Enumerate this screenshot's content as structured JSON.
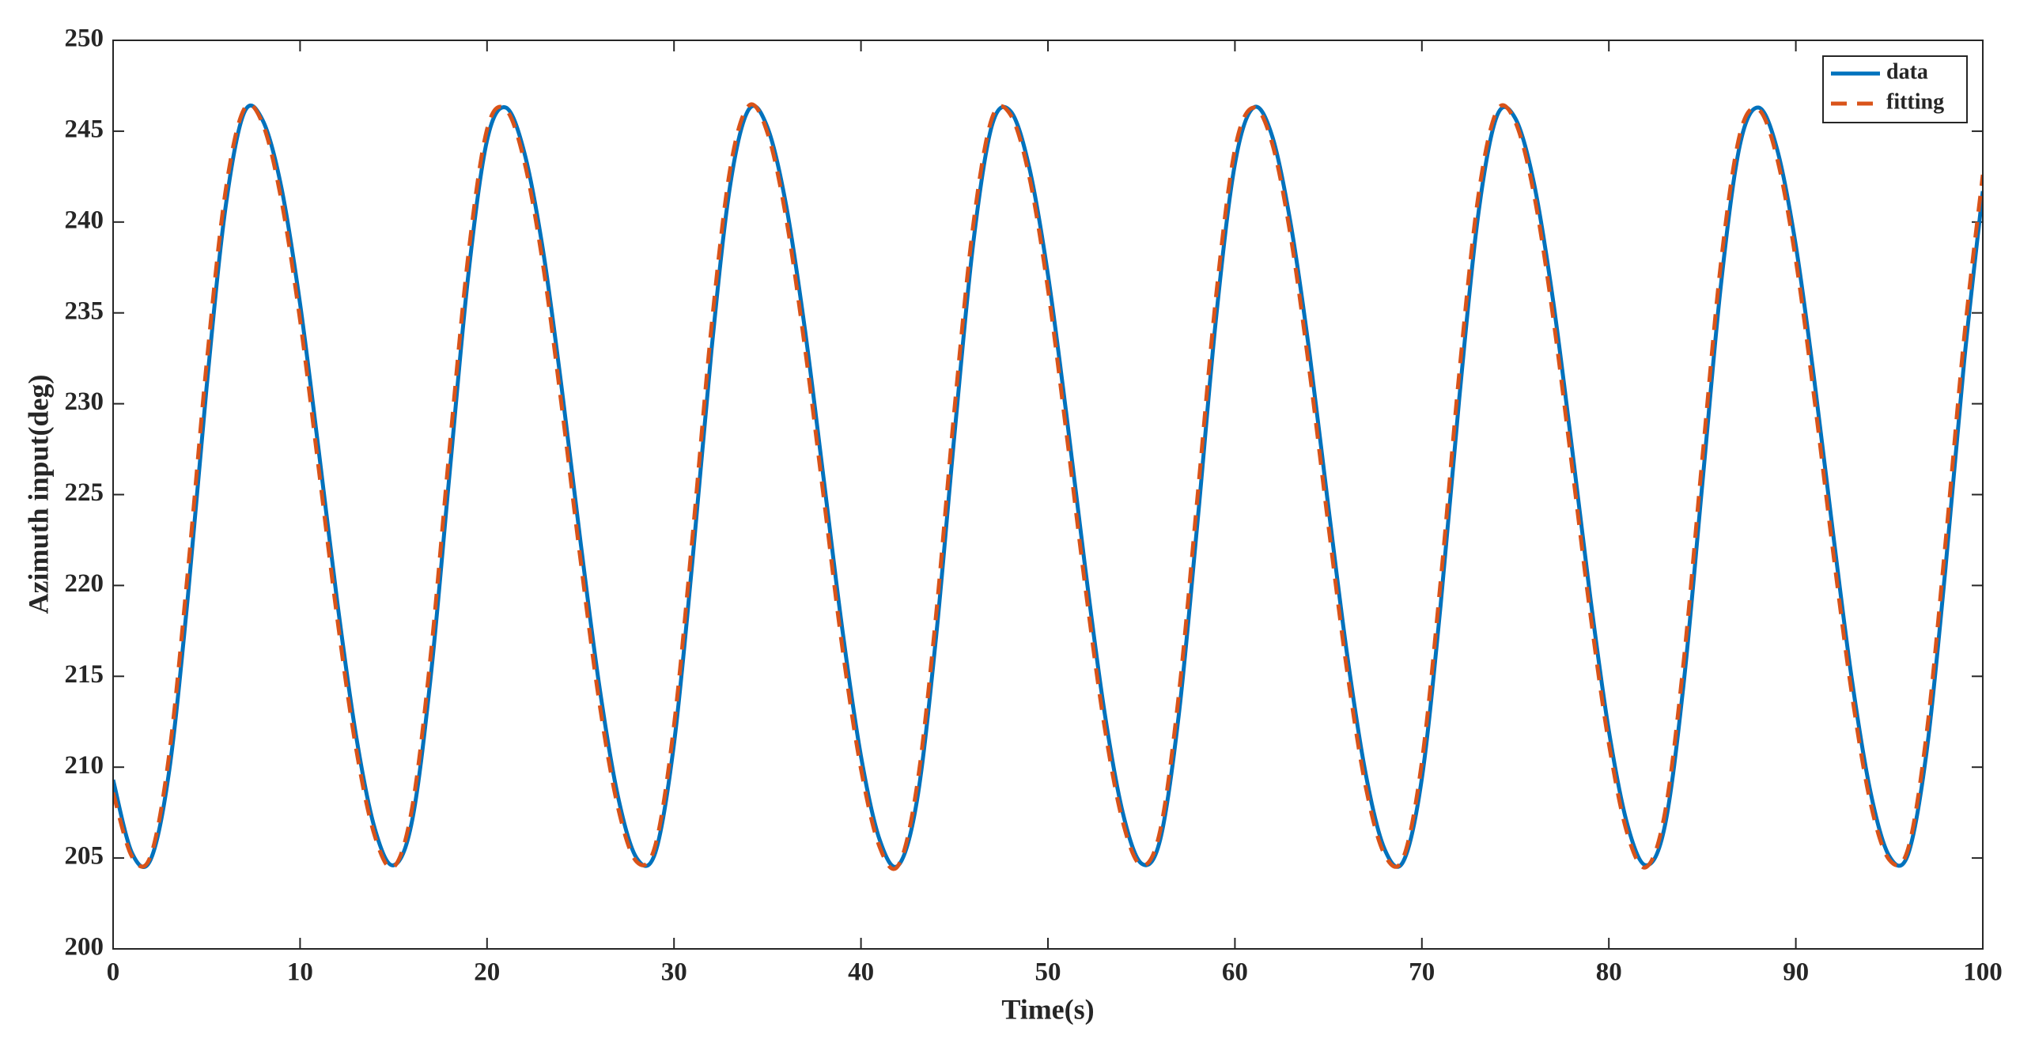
{
  "chart_data": {
    "type": "line",
    "xlabel": "Time(s)",
    "ylabel": "Azimuth input(deg)",
    "xlim": [
      0,
      100
    ],
    "ylim": [
      200,
      250
    ],
    "xticks": [
      0,
      10,
      20,
      30,
      40,
      50,
      60,
      70,
      80,
      90,
      100
    ],
    "yticks": [
      200,
      205,
      210,
      215,
      220,
      225,
      230,
      235,
      240,
      245,
      250
    ],
    "grid": false,
    "legend": "upper right",
    "x": [
      0,
      1,
      2,
      3,
      4,
      5,
      6,
      7,
      8,
      9,
      10,
      11,
      12,
      13,
      14,
      15,
      16,
      17,
      18,
      19,
      20,
      21,
      22,
      23,
      24,
      25,
      26,
      27,
      28,
      29,
      30,
      31,
      32,
      33,
      34,
      35,
      36,
      37,
      38,
      39,
      40,
      41,
      42,
      43,
      44,
      45,
      46,
      47,
      48,
      49,
      50,
      51,
      52,
      53,
      54,
      55,
      56,
      57,
      58,
      59,
      60,
      61,
      62,
      63,
      64,
      65,
      66,
      67,
      68,
      69,
      70,
      71,
      72,
      73,
      74,
      75,
      76,
      77,
      78,
      79,
      80,
      81,
      82,
      83,
      84,
      85,
      86,
      87,
      88,
      89,
      90,
      91,
      92,
      93,
      94,
      95,
      96,
      97,
      98,
      99,
      100
    ],
    "series": [
      {
        "name": "data",
        "color": "#0072bd",
        "dash": false,
        "values": [
          209.3,
          205.3,
          204.9,
          209.8,
          219.4,
          230.9,
          240.7,
          246.0,
          245.6,
          241.9,
          235.5,
          227.4,
          219.0,
          211.7,
          206.6,
          204.6,
          207.1,
          215.1,
          226.2,
          237.1,
          244.5,
          246.3,
          243.8,
          238.4,
          230.8,
          222.4,
          214.5,
          208.4,
          205.0,
          205.3,
          211.3,
          221.5,
          232.9,
          242.0,
          246.2,
          245.2,
          240.9,
          234.1,
          225.9,
          217.6,
          210.6,
          206.0,
          204.6,
          208.2,
          217.0,
          228.3,
          238.8,
          245.3,
          246.1,
          243.0,
          237.1,
          229.3,
          220.9,
          213.2,
          207.5,
          204.7,
          206.0,
          212.9,
          223.5,
          234.8,
          243.2,
          246.3,
          244.7,
          239.8,
          232.7,
          224.3,
          216.2,
          209.6,
          205.5,
          204.8,
          209.4,
          218.9,
          230.3,
          240.3,
          245.8,
          245.7,
          242.1,
          235.8,
          227.8,
          219.4,
          212.0,
          206.8,
          204.6,
          206.8,
          214.6,
          225.6,
          236.6,
          244.2,
          246.3,
          244.0,
          238.7,
          231.2,
          222.8,
          214.8,
          208.6,
          205.1,
          205.2,
          210.9,
          220.9,
          232.3,
          241.7
        ]
      },
      {
        "name": "fitting",
        "color": "#d95319",
        "dash": true,
        "values": [
          208.6,
          205.1,
          205.1,
          210.7,
          220.8,
          232.2,
          241.6,
          246.2,
          245.4,
          241.2,
          234.6,
          226.4,
          218.1,
          211.0,
          206.2,
          204.5,
          207.8,
          216.3,
          227.6,
          238.2,
          245.1,
          246.2,
          243.3,
          237.6,
          229.8,
          221.4,
          213.6,
          207.8,
          204.8,
          205.7,
          212.3,
          222.8,
          234.2,
          242.9,
          246.4,
          244.9,
          240.2,
          233.1,
          224.9,
          216.6,
          209.9,
          205.6,
          204.6,
          209.0,
          218.2,
          229.7,
          239.8,
          245.7,
          245.9,
          242.5,
          236.3,
          228.3,
          219.9,
          212.4,
          207.0,
          204.6,
          206.5,
          214.0,
          224.9,
          236.0,
          244.0,
          246.3,
          244.3,
          239.1,
          231.7,
          223.3,
          215.3,
          208.9,
          205.2,
          205.0,
          210.3,
          220.2,
          231.7,
          241.3,
          246.1,
          245.5,
          241.5,
          234.9,
          226.8,
          218.5,
          211.3,
          206.3,
          204.5,
          207.5,
          215.8,
          227.0,
          237.8,
          244.8,
          246.2,
          243.5,
          237.9,
          230.2,
          221.8,
          214.0,
          208.0,
          204.9,
          205.5,
          211.9,
          222.3,
          233.6,
          242.6
        ]
      }
    ]
  }
}
